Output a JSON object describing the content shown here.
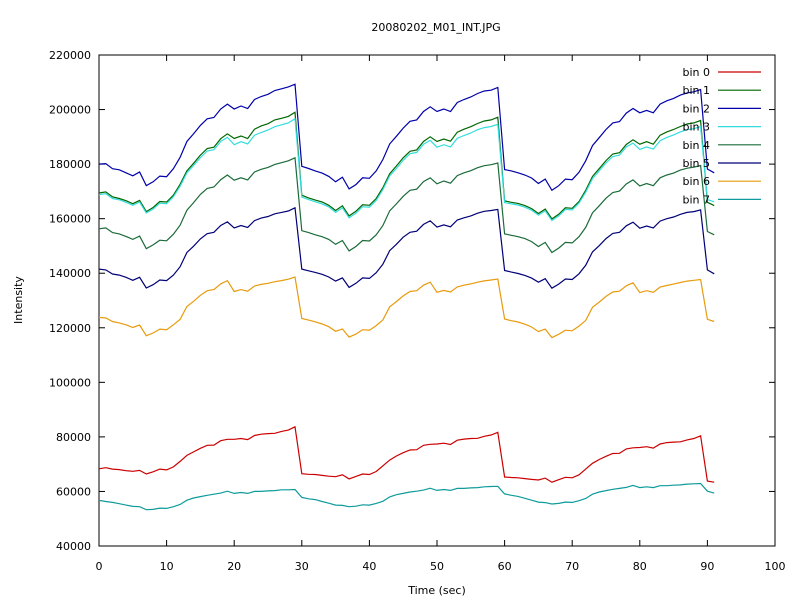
{
  "chart_data": {
    "type": "line",
    "title": "20080202_M01_INT.JPG",
    "xlabel": "Time (sec)",
    "ylabel": "Intensity",
    "xlim": [
      0,
      100
    ],
    "ylim": [
      40000,
      220000
    ],
    "x_ticks": [
      "0",
      "10",
      "20",
      "30",
      "40",
      "50",
      "60",
      "70",
      "80",
      "90",
      "100"
    ],
    "y_ticks": [
      "40000",
      "60000",
      "80000",
      "100000",
      "120000",
      "140000",
      "160000",
      "180000",
      "200000",
      "220000"
    ],
    "grid": false,
    "legend_position": "top-right",
    "x": [
      0,
      1,
      2,
      3,
      4,
      5,
      6,
      7,
      8,
      9,
      10,
      11,
      12,
      13,
      14,
      15,
      16,
      17,
      18,
      19,
      20,
      21,
      22,
      23,
      24,
      25,
      26,
      27,
      28,
      29,
      30,
      31,
      32,
      33,
      34,
      35,
      36,
      37,
      38,
      39,
      40,
      41,
      42,
      43,
      44,
      45,
      46,
      47,
      48,
      49,
      50,
      51,
      52,
      53,
      54,
      55,
      56,
      57,
      58,
      59,
      60,
      61,
      62,
      63,
      64,
      65,
      66,
      67,
      68,
      69,
      70,
      71,
      72,
      73,
      74,
      75,
      76,
      77,
      78,
      79,
      80,
      81,
      82,
      83,
      84,
      85,
      86,
      87,
      88,
      89,
      90,
      91
    ],
    "series": [
      {
        "name": "bin 0",
        "color": "#cc0000",
        "values": [
          68300,
          68700,
          68200,
          68000,
          67600,
          67400,
          67700,
          66400,
          67200,
          68200,
          67900,
          69000,
          71000,
          73200,
          74500,
          75800,
          76900,
          77000,
          78600,
          79100,
          79100,
          79400,
          79000,
          80500,
          81000,
          81200,
          81300,
          82000,
          82500,
          83700,
          66500,
          66300,
          66200,
          65900,
          65600,
          65400,
          66100,
          64600,
          65500,
          66400,
          66200,
          67300,
          69400,
          71500,
          73000,
          74200,
          75200,
          75300,
          76900,
          77300,
          77400,
          77700,
          77200,
          78800,
          79200,
          79400,
          79500,
          80200,
          80700,
          81700,
          65300,
          65100,
          65000,
          64700,
          64400,
          64200,
          64900,
          63400,
          64300,
          65200,
          65000,
          66100,
          68200,
          70300,
          71700,
          72900,
          73900,
          74000,
          75600,
          76000,
          76100,
          76400,
          75900,
          77400,
          77900,
          78100,
          78200,
          78900,
          79400,
          80400,
          63800,
          63400
        ]
      },
      {
        "name": "bin 1",
        "color": "#006600",
        "values": [
          169400,
          169800,
          168000,
          167400,
          166600,
          165500,
          166700,
          162600,
          164100,
          166300,
          166100,
          168600,
          172600,
          177500,
          180300,
          183300,
          185700,
          186200,
          189300,
          191100,
          189400,
          190300,
          189400,
          192800,
          194000,
          194800,
          196200,
          196800,
          197500,
          199000,
          168600,
          167600,
          166800,
          166100,
          164900,
          163000,
          164700,
          161000,
          162700,
          165100,
          164900,
          167400,
          171400,
          176500,
          179300,
          182300,
          184700,
          185200,
          188300,
          190000,
          188300,
          189200,
          188400,
          191700,
          192800,
          193700,
          194900,
          195800,
          196200,
          197200,
          166500,
          166000,
          165600,
          164800,
          163700,
          161900,
          163500,
          159900,
          161600,
          164000,
          163800,
          166300,
          170400,
          175500,
          178300,
          181300,
          183700,
          184200,
          187200,
          188900,
          187300,
          188200,
          187300,
          190600,
          191800,
          192700,
          193800,
          194700,
          195100,
          196000,
          166000,
          164800
        ]
      },
      {
        "name": "bin 2",
        "color": "#0000aa",
        "values": [
          180000,
          180200,
          178300,
          177900,
          176800,
          175700,
          177100,
          172100,
          173500,
          175600,
          175400,
          178300,
          182500,
          188300,
          191100,
          194200,
          196600,
          197100,
          200200,
          202000,
          200200,
          201300,
          200400,
          203700,
          204800,
          205600,
          207000,
          207600,
          208300,
          209300,
          179200,
          178400,
          177500,
          176700,
          175500,
          173500,
          175200,
          170900,
          172500,
          175000,
          174800,
          177500,
          181700,
          187400,
          190200,
          193200,
          195700,
          196200,
          199300,
          201000,
          199300,
          200200,
          199300,
          202600,
          203700,
          204600,
          205900,
          206800,
          207100,
          208100,
          178000,
          177500,
          176800,
          176000,
          174900,
          172900,
          174500,
          170400,
          172100,
          174500,
          174300,
          177000,
          181200,
          186800,
          189700,
          192700,
          195100,
          195600,
          198700,
          200400,
          198800,
          199700,
          198800,
          202000,
          203200,
          204100,
          205300,
          206100,
          206500,
          207300,
          178200,
          176800
        ]
      },
      {
        "name": "bin 3",
        "color": "#33dddd",
        "values": [
          168800,
          169200,
          167400,
          166900,
          166000,
          164900,
          166100,
          162100,
          163500,
          165700,
          165500,
          168000,
          171900,
          176800,
          179500,
          182400,
          184800,
          185300,
          188300,
          189800,
          187100,
          188200,
          187400,
          190600,
          191600,
          192500,
          193700,
          194400,
          195100,
          196600,
          167900,
          167000,
          166200,
          165400,
          164300,
          162300,
          164000,
          160300,
          162000,
          164400,
          164200,
          166700,
          170700,
          175700,
          178400,
          181400,
          183800,
          184300,
          187300,
          188700,
          186200,
          187100,
          186300,
          189500,
          190500,
          191400,
          192600,
          193400,
          193800,
          194600,
          165900,
          165400,
          165000,
          164200,
          163100,
          161300,
          162900,
          159300,
          161000,
          163400,
          163200,
          165700,
          169700,
          174700,
          177500,
          180400,
          182800,
          183300,
          186300,
          187700,
          185400,
          186300,
          185500,
          188600,
          189800,
          190700,
          191800,
          192600,
          193000,
          193800,
          167000,
          166200
        ]
      },
      {
        "name": "bin 4",
        "color": "#1b6b3a",
        "values": [
          156300,
          156600,
          154900,
          154400,
          153500,
          152400,
          153600,
          149000,
          150400,
          152100,
          151900,
          154300,
          157600,
          163100,
          165900,
          168900,
          171100,
          171600,
          174300,
          176000,
          174100,
          175000,
          174200,
          177100,
          178100,
          178800,
          179900,
          180500,
          181200,
          182300,
          155600,
          154900,
          154100,
          153400,
          152400,
          150600,
          152000,
          148200,
          149800,
          152000,
          151800,
          154100,
          157500,
          162900,
          165400,
          168200,
          170400,
          170800,
          173600,
          175000,
          172800,
          173800,
          173000,
          175800,
          176800,
          177600,
          178700,
          179400,
          179800,
          180400,
          154400,
          153900,
          153400,
          152700,
          151600,
          149800,
          151300,
          147600,
          149200,
          151300,
          151100,
          153400,
          156800,
          162100,
          164700,
          167500,
          169600,
          170100,
          172700,
          174200,
          172000,
          172900,
          172100,
          175000,
          176000,
          176700,
          177800,
          178500,
          178900,
          179500,
          155300,
          154100
        ]
      },
      {
        "name": "bin 5",
        "color": "#000077",
        "values": [
          141500,
          141200,
          139700,
          139300,
          138500,
          137400,
          138500,
          134600,
          135800,
          137500,
          137300,
          139300,
          142400,
          147600,
          149900,
          152600,
          154500,
          155000,
          157500,
          158800,
          156600,
          157500,
          156800,
          159300,
          160200,
          160800,
          161800,
          162300,
          162800,
          164000,
          141500,
          140900,
          140300,
          139600,
          138600,
          137100,
          138300,
          134800,
          136300,
          138300,
          138100,
          140200,
          143300,
          148300,
          150600,
          153200,
          155000,
          155400,
          157900,
          159200,
          156900,
          157700,
          157000,
          159500,
          160300,
          161000,
          162000,
          162700,
          163000,
          163400,
          141000,
          140400,
          139900,
          139200,
          138200,
          136700,
          138000,
          134500,
          136000,
          137900,
          137700,
          139800,
          142900,
          147800,
          150100,
          152700,
          154600,
          155000,
          157400,
          158700,
          156500,
          157300,
          156600,
          159100,
          160000,
          160600,
          161600,
          162300,
          162600,
          163200,
          141200,
          139800
        ]
      },
      {
        "name": "bin 6",
        "color": "#e89b0e",
        "values": [
          123800,
          123600,
          122300,
          121800,
          121100,
          120100,
          121000,
          117100,
          118100,
          119500,
          119300,
          121100,
          123100,
          127800,
          129700,
          131900,
          133600,
          134000,
          136100,
          137300,
          133300,
          134000,
          133400,
          135300,
          135900,
          136300,
          136900,
          137300,
          137800,
          138600,
          123400,
          122800,
          122200,
          121400,
          120400,
          118700,
          119600,
          116600,
          117700,
          119300,
          119100,
          120800,
          122900,
          127700,
          129600,
          131700,
          133300,
          133600,
          135600,
          136700,
          133000,
          133700,
          133100,
          135000,
          135600,
          136100,
          136700,
          137200,
          137500,
          137900,
          123200,
          122600,
          122100,
          121300,
          120300,
          118600,
          119500,
          116400,
          117600,
          119100,
          118900,
          120600,
          122700,
          127500,
          129400,
          131500,
          133100,
          133400,
          135400,
          136500,
          132900,
          133600,
          133000,
          134900,
          135500,
          136000,
          136600,
          137100,
          137400,
          137700,
          123100,
          122300
        ]
      },
      {
        "name": "bin 7",
        "color": "#0f9b9b",
        "values": [
          56700,
          56300,
          56000,
          55500,
          55000,
          54500,
          54400,
          53300,
          53400,
          53900,
          53800,
          54400,
          55200,
          56800,
          57600,
          58100,
          58600,
          59000,
          59400,
          60100,
          59300,
          59600,
          59300,
          60000,
          60000,
          60200,
          60300,
          60600,
          60600,
          60700,
          57800,
          57300,
          57000,
          56300,
          55700,
          55000,
          54900,
          54400,
          54600,
          55100,
          55000,
          55600,
          56400,
          58000,
          58800,
          59300,
          59800,
          60100,
          60500,
          61200,
          60400,
          60700,
          60400,
          61100,
          61100,
          61300,
          61400,
          61700,
          61800,
          61900,
          59100,
          58600,
          58200,
          57500,
          56800,
          56100,
          55900,
          55400,
          55600,
          56100,
          56000,
          56600,
          57400,
          59000,
          59800,
          60300,
          60800,
          61100,
          61500,
          62200,
          61400,
          61700,
          61400,
          62100,
          62100,
          62300,
          62400,
          62700,
          62800,
          62900,
          60100,
          59400
        ]
      }
    ]
  }
}
